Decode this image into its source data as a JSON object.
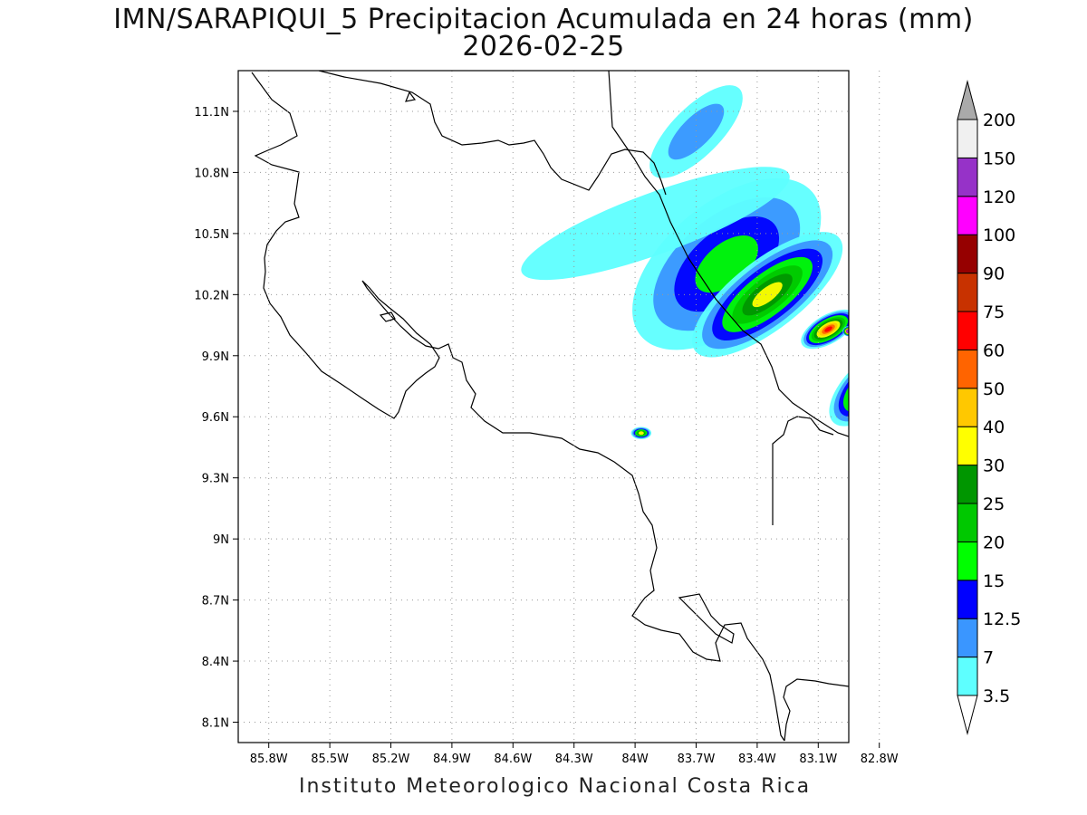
{
  "title": {
    "line1": "IMN/SARAPIQUI_5 Precipitacion Acumulada en 24 horas (mm)",
    "line2": "2026-02-25"
  },
  "footer": "Instituto Meteorologico Nacional Costa Rica",
  "axes": {
    "lat_ticks": [
      "11.1N",
      "10.8N",
      "10.5N",
      "10.2N",
      "9.9N",
      "9.6N",
      "9.3N",
      "9N",
      "8.7N",
      "8.4N",
      "8.1N"
    ],
    "lon_ticks": [
      "85.8W",
      "85.5W",
      "85.2W",
      "84.9W",
      "84.6W",
      "84.3W",
      "84W",
      "83.7W",
      "83.4W",
      "83.1W",
      "82.8W"
    ],
    "lat_range": [
      8.0,
      11.3
    ],
    "lon_range": [
      -85.95,
      -82.95
    ],
    "grid": "dotted"
  },
  "colorbar": {
    "levels": [
      "3.5",
      "7",
      "12.5",
      "15",
      "20",
      "25",
      "30",
      "40",
      "50",
      "60",
      "75",
      "90",
      "100",
      "120",
      "150",
      "200"
    ],
    "colors": [
      "#ffffff",
      "#5effff",
      "#3a96ff",
      "#0000ff",
      "#00ff00",
      "#00c800",
      "#009600",
      "#ffff00",
      "#ffc800",
      "#ff6400",
      "#ff0000",
      "#c83200",
      "#960000",
      "#ff00ff",
      "#9632c8",
      "#f0f0f0",
      "#aaaaaa"
    ]
  },
  "precip_regions": [
    {
      "lon": -83.55,
      "lat": 10.35,
      "rx": 0.55,
      "ry": 0.3,
      "rot": -40,
      "level": 4
    },
    {
      "lon": -83.35,
      "lat": 10.2,
      "rx": 0.45,
      "ry": 0.17,
      "rot": -38,
      "level": 7
    },
    {
      "lon": -83.05,
      "lat": 10.03,
      "rx": 0.15,
      "ry": 0.07,
      "rot": -30,
      "level": 10
    },
    {
      "lon": -82.95,
      "lat": 10.02,
      "rx": 0.03,
      "ry": 0.025,
      "rot": 0,
      "level": 14
    },
    {
      "lon": -83.9,
      "lat": 10.55,
      "rx": 0.7,
      "ry": 0.15,
      "rot": -20,
      "level": 1
    },
    {
      "lon": -83.7,
      "lat": 11.0,
      "rx": 0.3,
      "ry": 0.12,
      "rot": -45,
      "level": 2
    },
    {
      "lon": -82.85,
      "lat": 9.75,
      "rx": 0.25,
      "ry": 0.12,
      "rot": -45,
      "level": 8
    },
    {
      "lon": -83.97,
      "lat": 9.52,
      "rx": 0.05,
      "ry": 0.03,
      "rot": 0,
      "level": 7
    }
  ]
}
